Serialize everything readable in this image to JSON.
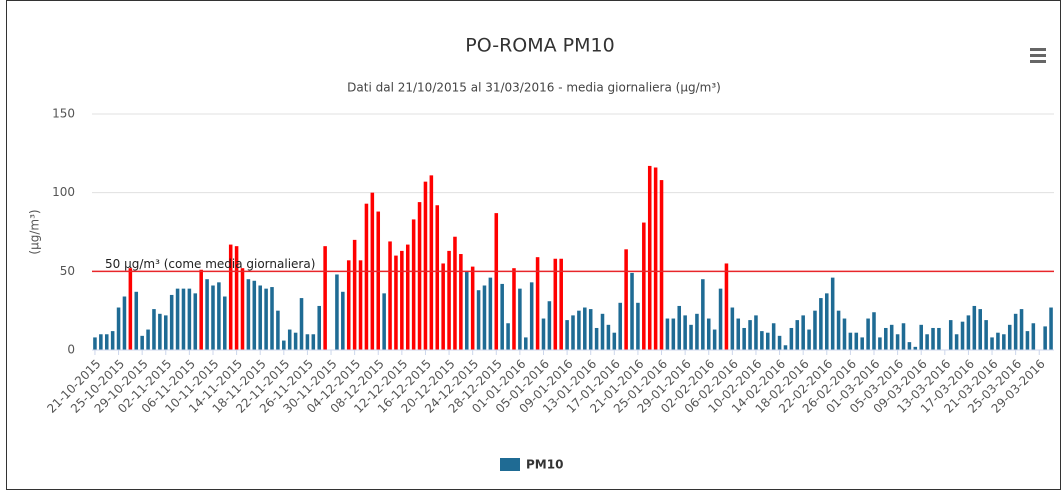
{
  "chart_data": {
    "type": "bar",
    "title": "PO-ROMA PM10",
    "subtitle": "Dati dal 21/10/2015 al 31/03/2016 - media giornaliera (µg/m³)",
    "y_label": "(µg/m³)",
    "ylim": [
      0,
      150
    ],
    "yticks": [
      0,
      50,
      100,
      150
    ],
    "grid": true,
    "threshold": {
      "value": 50,
      "label": "50 µg/m³ (come media giornaliera)",
      "color": "#e8262a"
    },
    "above_color": "#ff0000",
    "legend": "bottom",
    "categories": [
      "21-10-2015",
      null,
      null,
      null,
      "25-10-2015",
      null,
      null,
      null,
      "29-10-2015",
      null,
      null,
      null,
      "02-11-2015",
      null,
      null,
      null,
      "06-11-2015",
      null,
      null,
      null,
      "10-11-2015",
      null,
      null,
      null,
      "14-11-2015",
      null,
      null,
      null,
      "18-11-2015",
      null,
      null,
      null,
      "22-11-2015",
      null,
      null,
      null,
      "26-11-2015",
      null,
      null,
      null,
      "30-11-2015",
      null,
      null,
      null,
      "04-12-2015",
      null,
      null,
      null,
      "08-12-2015",
      null,
      null,
      null,
      "12-12-2015",
      null,
      null,
      null,
      "16-12-2015",
      null,
      null,
      null,
      "20-12-2015",
      null,
      null,
      null,
      "24-12-2015",
      null,
      null,
      null,
      "28-12-2015",
      null,
      null,
      null,
      "01-01-2016",
      null,
      null,
      null,
      "05-01-2016",
      null,
      null,
      null,
      "09-01-2016",
      null,
      null,
      null,
      "13-01-2016",
      null,
      null,
      null,
      "17-01-2016",
      null,
      null,
      null,
      "21-01-2016",
      null,
      null,
      null,
      "25-01-2016",
      null,
      null,
      null,
      "29-01-2016",
      null,
      null,
      null,
      "02-02-2016",
      null,
      null,
      null,
      "06-02-2016",
      null,
      null,
      null,
      "10-02-2016",
      null,
      null,
      null,
      "14-02-2016",
      null,
      null,
      null,
      "18-02-2016",
      null,
      null,
      null,
      "22-02-2016",
      null,
      null,
      null,
      "26-02-2016",
      null,
      null,
      null,
      "01-03-2016",
      null,
      null,
      null,
      "05-03-2016",
      null,
      null,
      null,
      "09-03-2016",
      null,
      null,
      null,
      "13-03-2016",
      null,
      null,
      null,
      "17-03-2016",
      null,
      null,
      null,
      "21-03-2016",
      null,
      null,
      null,
      "25-03-2016",
      null,
      null,
      null,
      "29-03-2016",
      null,
      null
    ],
    "series": [
      {
        "name": "PM10",
        "color": "#1f6b94",
        "values": [
          8,
          10,
          10,
          12,
          27,
          34,
          52,
          37,
          9,
          13,
          26,
          23,
          22,
          35,
          39,
          39,
          39,
          36,
          51,
          45,
          41,
          43,
          34,
          67,
          66,
          52,
          45,
          44,
          41,
          39,
          40,
          25,
          6,
          13,
          11,
          33,
          10,
          10,
          28,
          66,
          0,
          48,
          37,
          57,
          70,
          57,
          93,
          100,
          88,
          36,
          69,
          60,
          63,
          67,
          83,
          94,
          107,
          111,
          92,
          55,
          63,
          72,
          61,
          50,
          53,
          38,
          41,
          46,
          87,
          42,
          17,
          52,
          39,
          8,
          43,
          59,
          20,
          31,
          58,
          58,
          19,
          22,
          25,
          27,
          26,
          14,
          23,
          16,
          11,
          30,
          64,
          49,
          30,
          81,
          117,
          116,
          108,
          20,
          20,
          28,
          22,
          16,
          23,
          45,
          20,
          13,
          39,
          55,
          27,
          20,
          14,
          19,
          22,
          12,
          11,
          17,
          9,
          3,
          14,
          19,
          22,
          13,
          25,
          33,
          36,
          46,
          25,
          20,
          11,
          11,
          8,
          20,
          24,
          8,
          14,
          16,
          10,
          17,
          5,
          2,
          16,
          10,
          14,
          14,
          0,
          19,
          10,
          18,
          22,
          28,
          26,
          19,
          8,
          11,
          10,
          16,
          23,
          26,
          12,
          17,
          0,
          15,
          27
        ]
      }
    ]
  }
}
